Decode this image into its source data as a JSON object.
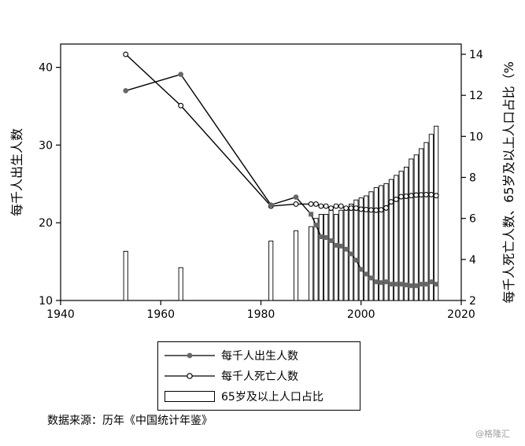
{
  "chart_data": {
    "type": "bar+line",
    "xlim": [
      1940,
      2020
    ],
    "x_ticks": [
      1940,
      1960,
      1980,
      2000,
      2020
    ],
    "ylim_left": [
      10,
      43
    ],
    "ylim_right": [
      2,
      14.5
    ],
    "y_ticks_left": [
      10,
      20,
      30,
      40
    ],
    "y_ticks_right": [
      2,
      4,
      6,
      8,
      10,
      12,
      14
    ],
    "ylabel_left": "每千人出生人数",
    "ylabel_right": "每千人死亡人数、65岁及以上人口占比（%",
    "grid": false,
    "legend_position": "bottom",
    "series": [
      {
        "name": "每千人出生人数",
        "axis": "left",
        "style": "line-filled-marker",
        "color": "#666666",
        "x": [
          1953,
          1964,
          1982,
          1987,
          1990,
          1991,
          1992,
          1993,
          1994,
          1995,
          1996,
          1997,
          1998,
          1999,
          2000,
          2001,
          2002,
          2003,
          2004,
          2005,
          2006,
          2007,
          2008,
          2009,
          2010,
          2011,
          2012,
          2013,
          2014,
          2015
        ],
        "values": [
          37.0,
          39.1,
          22.3,
          23.3,
          21.1,
          19.7,
          18.2,
          18.1,
          17.7,
          17.1,
          17.0,
          16.6,
          16.0,
          15.2,
          14.0,
          13.4,
          12.9,
          12.4,
          12.3,
          12.4,
          12.1,
          12.1,
          12.1,
          12.0,
          11.9,
          11.9,
          12.1,
          12.1,
          12.4,
          12.1
        ]
      },
      {
        "name": "每千人死亡人数",
        "axis": "right",
        "style": "line-hollow-marker",
        "color": "#000000",
        "x": [
          1953,
          1964,
          1982,
          1987,
          1990,
          1991,
          1992,
          1993,
          1994,
          1995,
          1996,
          1997,
          1998,
          1999,
          2000,
          2001,
          2002,
          2003,
          2004,
          2005,
          2006,
          2007,
          2008,
          2009,
          2010,
          2011,
          2012,
          2013,
          2014,
          2015
        ],
        "values": [
          14.0,
          11.5,
          6.6,
          6.7,
          6.7,
          6.7,
          6.6,
          6.6,
          6.5,
          6.6,
          6.6,
          6.5,
          6.5,
          6.5,
          6.45,
          6.43,
          6.41,
          6.4,
          6.42,
          6.51,
          6.81,
          6.93,
          7.06,
          7.08,
          7.11,
          7.14,
          7.15,
          7.16,
          7.16,
          7.11
        ]
      },
      {
        "name": "65岁及以上人口占比",
        "axis": "right",
        "style": "bar",
        "color": "#ffffff",
        "x": [
          1953,
          1964,
          1982,
          1987,
          1990,
          1991,
          1992,
          1993,
          1994,
          1995,
          1996,
          1997,
          1998,
          1999,
          2000,
          2001,
          2002,
          2003,
          2004,
          2005,
          2006,
          2007,
          2008,
          2009,
          2010,
          2011,
          2012,
          2013,
          2014,
          2015
        ],
        "values": [
          4.4,
          3.6,
          4.9,
          5.4,
          5.6,
          6.0,
          6.2,
          6.2,
          6.4,
          6.2,
          6.4,
          6.5,
          6.7,
          6.9,
          7.0,
          7.1,
          7.3,
          7.5,
          7.6,
          7.7,
          7.9,
          8.1,
          8.3,
          8.5,
          8.9,
          9.1,
          9.4,
          9.7,
          10.1,
          10.5
        ]
      }
    ]
  },
  "legend": {
    "items": [
      {
        "label": "每千人出生人数"
      },
      {
        "label": "每千人死亡人数"
      },
      {
        "label": "65岁及以上人口占比"
      }
    ]
  },
  "source": "数据来源：历年《中国统计年鉴》",
  "watermark": "@格隆汇"
}
